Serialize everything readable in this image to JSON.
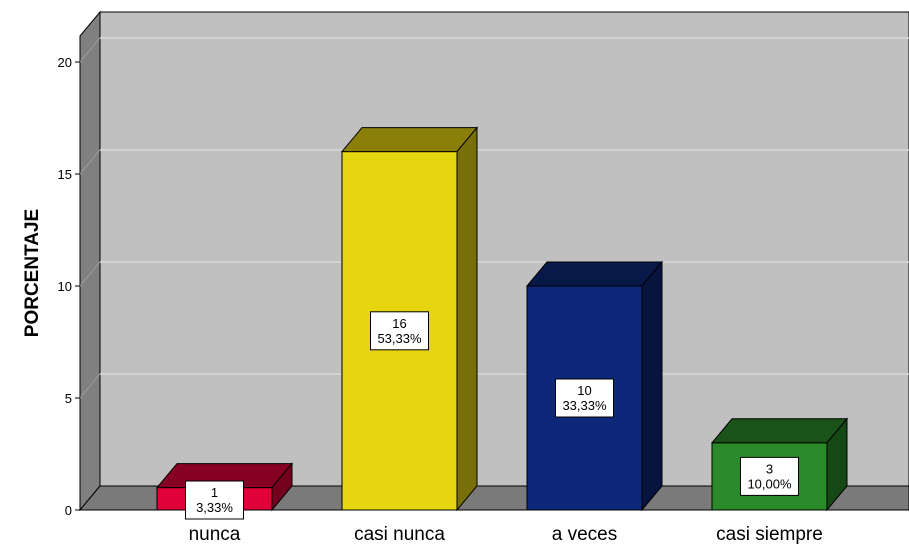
{
  "chart_data": {
    "type": "bar",
    "style": "3d",
    "categories": [
      "nunca",
      "casi nunca",
      "a veces",
      "casi siempre"
    ],
    "values": [
      1,
      16,
      10,
      3
    ],
    "percent_labels": [
      "3,33%",
      "53,33%",
      "33,33%",
      "10,00%"
    ],
    "xlabel": "",
    "ylabel": "PORCENTAJE",
    "ylim": [
      0,
      21
    ],
    "yticks": [
      "0",
      "5",
      "10",
      "15",
      "20"
    ],
    "grid": true,
    "legend": "none",
    "colors": {
      "bars": [
        "#e0003a",
        "#e6d60f",
        "#0d2878",
        "#2a8a2a"
      ],
      "plot_background": "#c0c0c0",
      "wall_side": "#808080",
      "floor": "#7a7a7a"
    }
  }
}
